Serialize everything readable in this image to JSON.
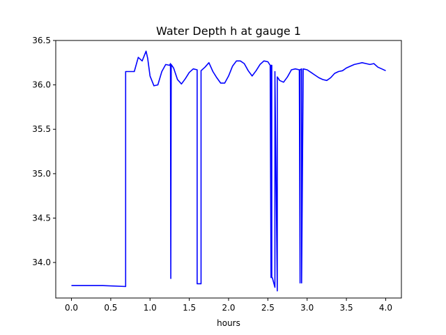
{
  "chart_data": {
    "type": "line",
    "title": "Water Depth h at gauge 1",
    "xlabel": "hours",
    "ylabel": "",
    "xlim": [
      -0.2,
      4.2
    ],
    "ylim": [
      33.6,
      36.5
    ],
    "xticks": [
      0.0,
      0.5,
      1.0,
      1.5,
      2.0,
      2.5,
      3.0,
      3.5,
      4.0
    ],
    "xtick_labels": [
      "0.0",
      "0.5",
      "1.0",
      "1.5",
      "2.0",
      "2.5",
      "3.0",
      "3.5",
      "4.0"
    ],
    "yticks": [
      34.0,
      34.5,
      35.0,
      35.5,
      36.0,
      36.5
    ],
    "ytick_labels": [
      "34.0",
      "34.5",
      "35.0",
      "35.5",
      "36.0",
      "36.5"
    ],
    "grid": false,
    "legend": "none",
    "series": [
      {
        "color": "#0000ff",
        "x": [
          0.0,
          0.4,
          0.69,
          0.69,
          0.8,
          0.85,
          0.9,
          0.95,
          0.97,
          1.0,
          1.05,
          1.1,
          1.15,
          1.2,
          1.25,
          1.26,
          1.265,
          1.27,
          1.3,
          1.35,
          1.4,
          1.45,
          1.5,
          1.55,
          1.6,
          1.6,
          1.65,
          1.65,
          1.7,
          1.75,
          1.8,
          1.85,
          1.9,
          1.95,
          2.0,
          2.05,
          2.1,
          2.15,
          2.2,
          2.25,
          2.3,
          2.35,
          2.4,
          2.45,
          2.5,
          2.53,
          2.54,
          2.54,
          2.55,
          2.55,
          2.56,
          2.59,
          2.59,
          2.62,
          2.62,
          2.65,
          2.7,
          2.75,
          2.8,
          2.85,
          2.9,
          2.91,
          2.91,
          2.93,
          2.93,
          2.95,
          3.0,
          3.05,
          3.1,
          3.15,
          3.2,
          3.25,
          3.3,
          3.35,
          3.4,
          3.45,
          3.5,
          3.55,
          3.6,
          3.65,
          3.7,
          3.75,
          3.8,
          3.85,
          3.9,
          3.95,
          4.0
        ],
        "values": [
          33.74,
          33.74,
          33.73,
          36.15,
          36.15,
          36.31,
          36.27,
          36.38,
          36.3,
          36.1,
          35.99,
          36.0,
          36.15,
          36.23,
          36.22,
          36.24,
          33.82,
          36.23,
          36.19,
          36.06,
          36.01,
          36.07,
          36.14,
          36.18,
          36.17,
          33.76,
          33.76,
          36.16,
          36.2,
          36.25,
          36.15,
          36.08,
          36.02,
          36.02,
          36.1,
          36.21,
          36.27,
          36.27,
          36.24,
          36.16,
          36.1,
          36.16,
          36.23,
          36.27,
          36.26,
          36.22,
          33.83,
          36.22,
          36.22,
          33.84,
          33.82,
          33.72,
          36.15,
          33.68,
          36.09,
          36.05,
          36.03,
          36.09,
          36.17,
          36.18,
          36.17,
          33.77,
          36.17,
          36.18,
          33.77,
          36.18,
          36.17,
          36.14,
          36.11,
          36.08,
          36.06,
          36.05,
          36.08,
          36.13,
          36.15,
          36.16,
          36.19,
          36.21,
          36.23,
          36.24,
          36.25,
          36.24,
          36.23,
          36.24,
          36.2,
          36.18,
          36.16
        ]
      }
    ]
  }
}
